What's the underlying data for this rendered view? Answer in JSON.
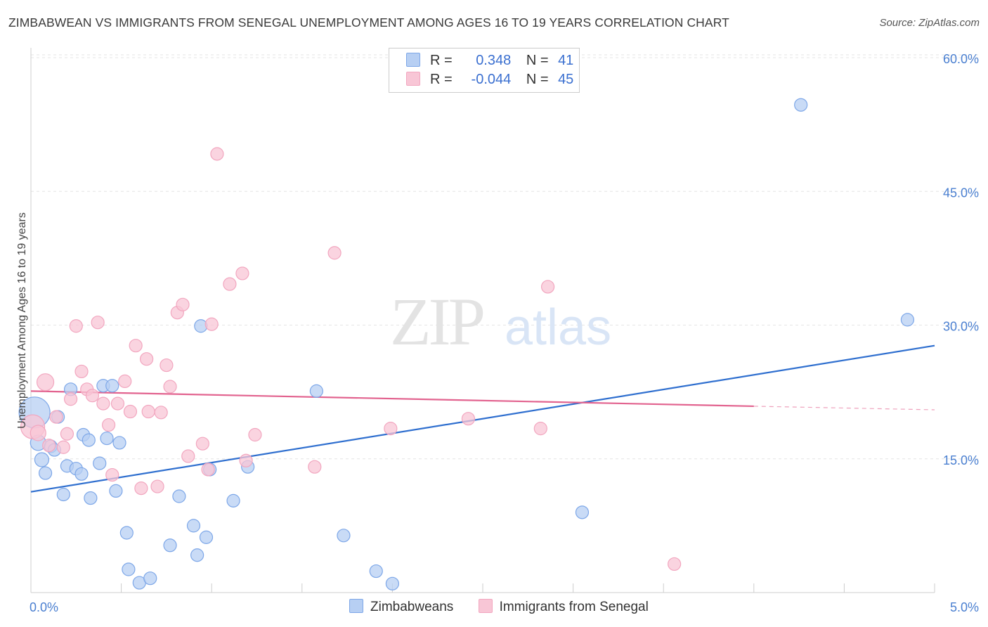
{
  "chart_data": {
    "type": "scatter",
    "title": "ZIMBABWEAN VS IMMIGRANTS FROM SENEGAL UNEMPLOYMENT AMONG AGES 16 TO 19 YEARS CORRELATION CHART",
    "source": "Source: ZipAtlas.com",
    "watermark": {
      "zip": "ZIP",
      "atlas": "atlas"
    },
    "xlabel": "",
    "ylabel": "Unemployment Among Ages 16 to 19 years",
    "xlim": [
      0,
      5
    ],
    "ylim": [
      0,
      60
    ],
    "x_tick_labels": [
      "0.0%",
      "5.0%"
    ],
    "y_ticks": [
      15,
      30,
      45,
      60
    ],
    "y_tick_labels": [
      "15.0%",
      "30.0%",
      "45.0%",
      "60.0%"
    ],
    "grid": true,
    "legend": {
      "position": "top-center",
      "rows": [
        {
          "r_label": "R =",
          "r_value": " 0.348",
          "n_label": "N =",
          "n_value": "41"
        },
        {
          "r_label": "R =",
          "r_value": "-0.044",
          "n_label": "N =",
          "n_value": "45"
        }
      ]
    },
    "series": [
      {
        "name": "Zimbabweans",
        "color": "#7da7e8",
        "fill": "#b7cff3",
        "line_color": "#2f6fcf",
        "trend": {
          "x0": 0,
          "y0": 11.3,
          "x1": 5,
          "y1": 27.7
        },
        "points": [
          {
            "x": 0.02,
            "y": 20.2,
            "s": 22
          },
          {
            "x": 0.04,
            "y": 16.8,
            "s": 11
          },
          {
            "x": 0.06,
            "y": 14.9,
            "s": 10
          },
          {
            "x": 0.08,
            "y": 13.4,
            "s": 9
          },
          {
            "x": 0.11,
            "y": 16.4,
            "s": 9
          },
          {
            "x": 0.13,
            "y": 16.0,
            "s": 9
          },
          {
            "x": 0.15,
            "y": 19.7,
            "s": 9
          },
          {
            "x": 0.18,
            "y": 11.0,
            "s": 9
          },
          {
            "x": 0.2,
            "y": 14.2,
            "s": 9
          },
          {
            "x": 0.22,
            "y": 22.8,
            "s": 9
          },
          {
            "x": 0.25,
            "y": 13.9,
            "s": 9
          },
          {
            "x": 0.28,
            "y": 13.3,
            "s": 9
          },
          {
            "x": 0.29,
            "y": 17.7,
            "s": 9
          },
          {
            "x": 0.32,
            "y": 17.1,
            "s": 9
          },
          {
            "x": 0.33,
            "y": 10.6,
            "s": 9
          },
          {
            "x": 0.38,
            "y": 14.5,
            "s": 9
          },
          {
            "x": 0.4,
            "y": 23.2,
            "s": 9
          },
          {
            "x": 0.42,
            "y": 17.3,
            "s": 9
          },
          {
            "x": 0.45,
            "y": 23.2,
            "s": 9
          },
          {
            "x": 0.47,
            "y": 11.4,
            "s": 9
          },
          {
            "x": 0.49,
            "y": 16.8,
            "s": 9
          },
          {
            "x": 0.53,
            "y": 6.7,
            "s": 9
          },
          {
            "x": 0.54,
            "y": 2.6,
            "s": 9
          },
          {
            "x": 0.6,
            "y": 1.1,
            "s": 9
          },
          {
            "x": 0.66,
            "y": 1.6,
            "s": 9
          },
          {
            "x": 0.77,
            "y": 5.3,
            "s": 9
          },
          {
            "x": 0.82,
            "y": 10.8,
            "s": 9
          },
          {
            "x": 0.9,
            "y": 7.5,
            "s": 9
          },
          {
            "x": 0.92,
            "y": 4.2,
            "s": 9
          },
          {
            "x": 0.94,
            "y": 29.9,
            "s": 9
          },
          {
            "x": 0.97,
            "y": 6.2,
            "s": 9
          },
          {
            "x": 0.99,
            "y": 13.8,
            "s": 9
          },
          {
            "x": 1.12,
            "y": 10.3,
            "s": 9
          },
          {
            "x": 1.2,
            "y": 14.1,
            "s": 9
          },
          {
            "x": 1.58,
            "y": 22.6,
            "s": 9
          },
          {
            "x": 1.73,
            "y": 6.4,
            "s": 9
          },
          {
            "x": 1.91,
            "y": 2.4,
            "s": 9
          },
          {
            "x": 2.0,
            "y": 1.0,
            "s": 9
          },
          {
            "x": 3.05,
            "y": 9.0,
            "s": 9
          },
          {
            "x": 4.26,
            "y": 54.7,
            "s": 9
          },
          {
            "x": 4.85,
            "y": 30.6,
            "s": 9
          }
        ]
      },
      {
        "name": "Immigrants from Senegal",
        "color": "#f2a6bf",
        "fill": "#f8c6d6",
        "line_color": "#e2638f",
        "trend": {
          "x0": 0,
          "y0": 22.6,
          "x1": 4,
          "y1": 20.9
        },
        "trend_dashed": {
          "x0": 4,
          "y0": 20.9,
          "x1": 5,
          "y1": 20.5
        },
        "points": [
          {
            "x": 0.01,
            "y": 18.6,
            "s": 17
          },
          {
            "x": 0.04,
            "y": 17.9,
            "s": 11
          },
          {
            "x": 0.08,
            "y": 23.6,
            "s": 12
          },
          {
            "x": 0.1,
            "y": 16.5,
            "s": 9
          },
          {
            "x": 0.14,
            "y": 19.7,
            "s": 9
          },
          {
            "x": 0.18,
            "y": 16.3,
            "s": 9
          },
          {
            "x": 0.2,
            "y": 17.8,
            "s": 9
          },
          {
            "x": 0.22,
            "y": 21.7,
            "s": 9
          },
          {
            "x": 0.25,
            "y": 29.9,
            "s": 9
          },
          {
            "x": 0.28,
            "y": 24.8,
            "s": 9
          },
          {
            "x": 0.31,
            "y": 22.8,
            "s": 9
          },
          {
            "x": 0.34,
            "y": 22.1,
            "s": 9
          },
          {
            "x": 0.37,
            "y": 30.3,
            "s": 9
          },
          {
            "x": 0.4,
            "y": 21.2,
            "s": 9
          },
          {
            "x": 0.43,
            "y": 18.8,
            "s": 9
          },
          {
            "x": 0.45,
            "y": 13.2,
            "s": 9
          },
          {
            "x": 0.48,
            "y": 21.2,
            "s": 9
          },
          {
            "x": 0.52,
            "y": 23.7,
            "s": 9
          },
          {
            "x": 0.55,
            "y": 20.3,
            "s": 9
          },
          {
            "x": 0.58,
            "y": 27.7,
            "s": 9
          },
          {
            "x": 0.61,
            "y": 11.7,
            "s": 9
          },
          {
            "x": 0.64,
            "y": 26.2,
            "s": 9
          },
          {
            "x": 0.65,
            "y": 20.3,
            "s": 9
          },
          {
            "x": 0.7,
            "y": 11.9,
            "s": 9
          },
          {
            "x": 0.72,
            "y": 20.2,
            "s": 9
          },
          {
            "x": 0.75,
            "y": 25.5,
            "s": 9
          },
          {
            "x": 0.77,
            "y": 23.1,
            "s": 9
          },
          {
            "x": 0.81,
            "y": 31.4,
            "s": 9
          },
          {
            "x": 0.84,
            "y": 32.3,
            "s": 9
          },
          {
            "x": 0.87,
            "y": 15.3,
            "s": 9
          },
          {
            "x": 0.95,
            "y": 16.7,
            "s": 9
          },
          {
            "x": 0.98,
            "y": 13.8,
            "s": 9
          },
          {
            "x": 1.0,
            "y": 30.1,
            "s": 9
          },
          {
            "x": 1.03,
            "y": 49.2,
            "s": 9
          },
          {
            "x": 1.1,
            "y": 34.6,
            "s": 9
          },
          {
            "x": 1.17,
            "y": 35.8,
            "s": 9
          },
          {
            "x": 1.19,
            "y": 14.8,
            "s": 9
          },
          {
            "x": 1.24,
            "y": 17.7,
            "s": 9
          },
          {
            "x": 1.57,
            "y": 14.1,
            "s": 9
          },
          {
            "x": 1.68,
            "y": 38.1,
            "s": 9
          },
          {
            "x": 1.99,
            "y": 18.4,
            "s": 9
          },
          {
            "x": 2.42,
            "y": 19.5,
            "s": 9
          },
          {
            "x": 2.82,
            "y": 18.4,
            "s": 9
          },
          {
            "x": 2.86,
            "y": 34.3,
            "s": 9
          },
          {
            "x": 3.56,
            "y": 3.2,
            "s": 9
          }
        ]
      }
    ]
  }
}
